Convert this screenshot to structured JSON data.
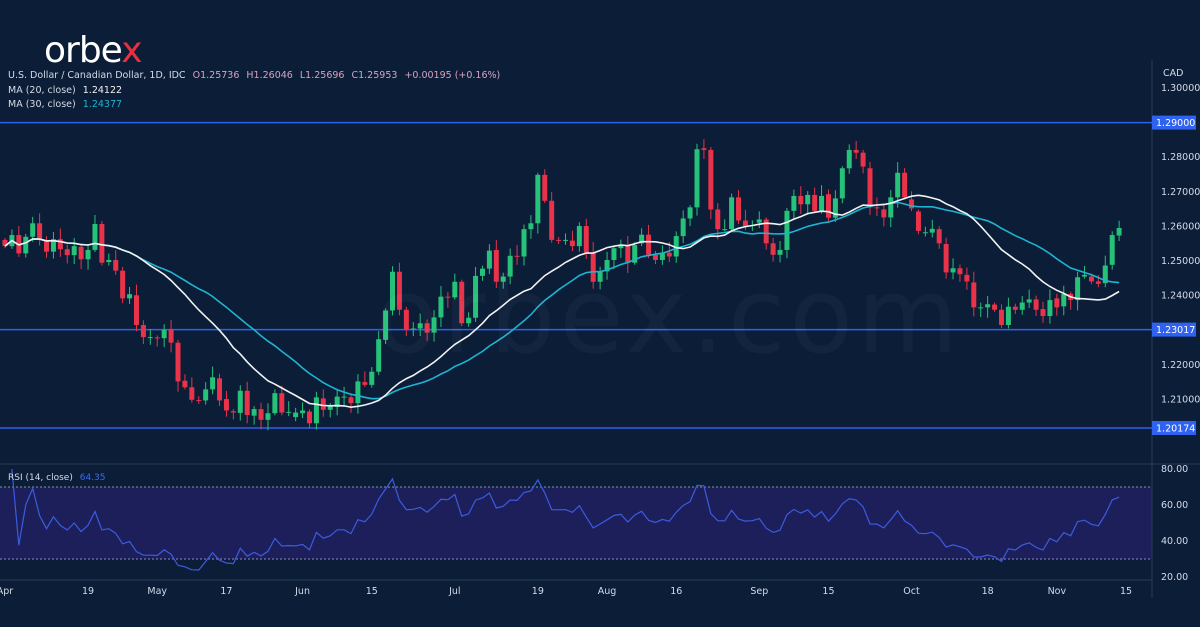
{
  "logo": {
    "text_main": "orbe",
    "text_accent": "x",
    "accent_color": "#e8303f"
  },
  "watermark": "orbex.com",
  "legend": {
    "title": "U.S. Dollar / Canadian Dollar, 1D, IDC",
    "open": "O1.25736",
    "high": "H1.26046",
    "low": "L1.25696",
    "close": "C1.25953",
    "change": "+0.00195 (+0.16%)",
    "ma20_label": "MA (20, close)",
    "ma20_value": "1.24122",
    "ma30_label": "MA (30, close)",
    "ma30_value": "1.24377",
    "rsi_label": "RSI (14, close)",
    "rsi_value": "64.35"
  },
  "colors": {
    "background": "#0b1d37",
    "up": "#26c27a",
    "down": "#e8334a",
    "ma20": "#f2f2f2",
    "ma30": "#1fb4cf",
    "rsi": "#3d5be0",
    "level": "#2f62f0",
    "rsi_band": "#1c1f5a"
  },
  "chart_data": {
    "type": "candlestick",
    "currency": "CAD",
    "price_ticks": [
      "1.30000",
      "1.28000",
      "1.27000",
      "1.26000",
      "1.25000",
      "1.24000",
      "1.22000",
      "1.21000"
    ],
    "ylim": [
      1.1935,
      1.3065
    ],
    "levels": [
      {
        "value": 1.29,
        "label": "1.29000"
      },
      {
        "value": 1.23017,
        "label": "1.23017"
      },
      {
        "value": 1.20174,
        "label": "1.20174"
      }
    ],
    "rsi_ticks": [
      "80.00",
      "60.00",
      "40.00",
      "20.00"
    ],
    "rsi_bands": [
      30,
      70
    ],
    "x_ticks": [
      [
        "04-01",
        "Apr"
      ],
      [
        "04-19",
        "19"
      ],
      [
        "05-03",
        "May"
      ],
      [
        "05-17",
        "17"
      ],
      [
        "06-01",
        "Jun"
      ],
      [
        "06-15",
        "15"
      ],
      [
        "07-01",
        "Jul"
      ],
      [
        "07-19",
        "19"
      ],
      [
        "08-02",
        "Aug"
      ],
      [
        "08-16",
        "16"
      ],
      [
        "09-01",
        "Sep"
      ],
      [
        "09-15",
        "15"
      ],
      [
        "10-01",
        "Oct"
      ],
      [
        "10-18",
        "18"
      ],
      [
        "11-01",
        "Nov"
      ],
      [
        "11-15",
        "15"
      ]
    ],
    "candles": [
      [
        "04-01",
        1.2561,
        1.2543
      ],
      [
        "04-02",
        1.2543,
        1.2575
      ],
      [
        "04-05",
        1.2575,
        1.2522
      ],
      [
        "04-06",
        1.2522,
        1.257
      ],
      [
        "04-07",
        1.257,
        1.2609
      ],
      [
        "04-08",
        1.2609,
        1.2561
      ],
      [
        "04-09",
        1.2561,
        1.2527
      ],
      [
        "04-12",
        1.2527,
        1.2563
      ],
      [
        "04-13",
        1.2563,
        1.2534
      ],
      [
        "04-14",
        1.2534,
        1.2517
      ],
      [
        "04-15",
        1.2517,
        1.2543
      ],
      [
        "04-16",
        1.2541,
        1.2505
      ],
      [
        "04-19",
        1.2505,
        1.2532
      ],
      [
        "04-20",
        1.2532,
        1.2607
      ],
      [
        "04-21",
        1.2607,
        1.2495
      ],
      [
        "04-22",
        1.2497,
        1.2503
      ],
      [
        "04-23",
        1.2503,
        1.2472
      ],
      [
        "04-26",
        1.2472,
        1.2392
      ],
      [
        "04-27",
        1.2392,
        1.2404
      ],
      [
        "04-28",
        1.2401,
        1.2315
      ],
      [
        "04-29",
        1.2315,
        1.228
      ],
      [
        "04-30",
        1.228,
        1.228
      ],
      [
        "05-03",
        1.2279,
        1.2277
      ],
      [
        "05-04",
        1.2277,
        1.2301
      ],
      [
        "05-05",
        1.2303,
        1.2264
      ],
      [
        "05-06",
        1.2264,
        1.2152
      ],
      [
        "05-07",
        1.2154,
        1.2135
      ],
      [
        "05-10",
        1.2135,
        1.2099
      ],
      [
        "05-11",
        1.2098,
        1.2097
      ],
      [
        "05-12",
        1.2097,
        1.2129
      ],
      [
        "05-13",
        1.2129,
        1.2164
      ],
      [
        "05-14",
        1.2161,
        1.2097
      ],
      [
        "05-17",
        1.2101,
        1.2068
      ],
      [
        "05-18",
        1.2066,
        1.2062
      ],
      [
        "05-19",
        1.2061,
        1.2125
      ],
      [
        "05-20",
        1.2125,
        1.2055
      ],
      [
        "05-21",
        1.2053,
        1.2072
      ],
      [
        "05-24",
        1.2072,
        1.2041
      ],
      [
        "05-25",
        1.2041,
        1.206
      ],
      [
        "05-26",
        1.206,
        1.2118
      ],
      [
        "05-27",
        1.2118,
        1.2062
      ],
      [
        "05-28",
        1.2062,
        1.2064
      ],
      [
        "05-31",
        1.2049,
        1.2062
      ],
      [
        "06-01",
        1.206,
        1.2068
      ],
      [
        "06-02",
        1.2065,
        1.2031
      ],
      [
        "06-03",
        1.2031,
        1.2106
      ],
      [
        "06-04",
        1.2103,
        1.207
      ],
      [
        "06-07",
        1.207,
        1.2081
      ],
      [
        "06-08",
        1.2078,
        1.2108
      ],
      [
        "06-09",
        1.2108,
        1.2108
      ],
      [
        "06-10",
        1.2106,
        1.2089
      ],
      [
        "06-11",
        1.2089,
        1.2152
      ],
      [
        "06-14",
        1.215,
        1.2142
      ],
      [
        "06-15",
        1.2142,
        1.218
      ],
      [
        "06-16",
        1.218,
        1.2274
      ],
      [
        "06-17",
        1.2272,
        1.2357
      ],
      [
        "06-18",
        1.2357,
        1.2469
      ],
      [
        "06-21",
        1.2469,
        1.2359
      ],
      [
        "06-22",
        1.2359,
        1.2301
      ],
      [
        "06-23",
        1.2303,
        1.2305
      ],
      [
        "06-24",
        1.2305,
        1.232
      ],
      [
        "06-25",
        1.232,
        1.2293
      ],
      [
        "06-28",
        1.2293,
        1.2337
      ],
      [
        "06-29",
        1.2337,
        1.2397
      ],
      [
        "06-30",
        1.2397,
        1.2395
      ],
      [
        "07-01",
        1.2395,
        1.244
      ],
      [
        "07-02",
        1.244,
        1.232
      ],
      [
        "07-05",
        1.232,
        1.2336
      ],
      [
        "07-06",
        1.2336,
        1.2457
      ],
      [
        "07-07",
        1.2457,
        1.2478
      ],
      [
        "07-08",
        1.2478,
        1.253
      ],
      [
        "07-09",
        1.2532,
        1.244
      ],
      [
        "07-12",
        1.244,
        1.2455
      ],
      [
        "07-13",
        1.2455,
        1.2515
      ],
      [
        "07-14",
        1.2515,
        1.2513
      ],
      [
        "07-15",
        1.2513,
        1.2592
      ],
      [
        "07-16",
        1.2592,
        1.2609
      ],
      [
        "07-19",
        1.2609,
        1.2749
      ],
      [
        "07-20",
        1.2749,
        1.2674
      ],
      [
        "07-21",
        1.2674,
        1.2561
      ],
      [
        "07-22",
        1.2561,
        1.2559
      ],
      [
        "07-23",
        1.2559,
        1.2561
      ],
      [
        "07-26",
        1.2559,
        1.2543
      ],
      [
        "07-27",
        1.2543,
        1.2601
      ],
      [
        "07-28",
        1.2601,
        1.2524
      ],
      [
        "07-29",
        1.2524,
        1.244
      ],
      [
        "07-30",
        1.244,
        1.247
      ],
      [
        "08-02",
        1.247,
        1.2503
      ],
      [
        "08-03",
        1.2503,
        1.2537
      ],
      [
        "08-04",
        1.2537,
        1.2546
      ],
      [
        "08-05",
        1.2546,
        1.2495
      ],
      [
        "08-06",
        1.2495,
        1.2546
      ],
      [
        "08-09",
        1.2551,
        1.2576
      ],
      [
        "08-10",
        1.2576,
        1.2518
      ],
      [
        "08-11",
        1.2518,
        1.2503
      ],
      [
        "08-12",
        1.2503,
        1.2524
      ],
      [
        "08-13",
        1.2524,
        1.2513
      ],
      [
        "08-16",
        1.2513,
        1.2572
      ],
      [
        "08-17",
        1.2572,
        1.2623
      ],
      [
        "08-18",
        1.2623,
        1.2655
      ],
      [
        "08-19",
        1.2655,
        1.2823
      ],
      [
        "08-20",
        1.2826,
        1.2821
      ],
      [
        "08-23",
        1.2821,
        1.2649
      ],
      [
        "08-24",
        1.2649,
        1.2592
      ],
      [
        "08-25",
        1.2592,
        1.2592
      ],
      [
        "08-26",
        1.2592,
        1.2684
      ],
      [
        "08-27",
        1.2684,
        1.2617
      ],
      [
        "08-30",
        1.2617,
        1.2601
      ],
      [
        "08-31",
        1.2601,
        1.2604
      ],
      [
        "09-01",
        1.2611,
        1.262
      ],
      [
        "09-02",
        1.262,
        1.2551
      ],
      [
        "09-03",
        1.2551,
        1.2518
      ],
      [
        "09-06",
        1.2518,
        1.2532
      ],
      [
        "09-07",
        1.2532,
        1.2645
      ],
      [
        "09-08",
        1.2645,
        1.2688
      ],
      [
        "09-09",
        1.2688,
        1.2664
      ],
      [
        "09-10",
        1.2664,
        1.2691
      ],
      [
        "09-13",
        1.2691,
        1.2645
      ],
      [
        "09-14",
        1.2645,
        1.2688
      ],
      [
        "09-15",
        1.2693,
        1.2625
      ],
      [
        "09-16",
        1.2625,
        1.2681
      ],
      [
        "09-17",
        1.2681,
        1.2768
      ],
      [
        "09-20",
        1.2768,
        1.2821
      ],
      [
        "09-21",
        1.2821,
        1.2813
      ],
      [
        "09-22",
        1.2813,
        1.2773
      ],
      [
        "09-23",
        1.2768,
        1.2655
      ],
      [
        "09-24",
        1.2655,
        1.2654
      ],
      [
        "09-27",
        1.2649,
        1.2626
      ],
      [
        "09-28",
        1.2626,
        1.2684
      ],
      [
        "09-29",
        1.2684,
        1.2755
      ],
      [
        "09-30",
        1.2755,
        1.2684
      ],
      [
        "10-01",
        1.2678,
        1.2652
      ],
      [
        "10-04",
        1.2643,
        1.2587
      ],
      [
        "10-05",
        1.2583,
        1.2583
      ],
      [
        "10-06",
        1.2582,
        1.2593
      ],
      [
        "10-07",
        1.2592,
        1.2551
      ],
      [
        "10-08",
        1.2549,
        1.2467
      ],
      [
        "10-11",
        1.2467,
        1.2479
      ],
      [
        "10-12",
        1.2479,
        1.2462
      ],
      [
        "10-13",
        1.246,
        1.2441
      ],
      [
        "10-14",
        1.2438,
        1.2366
      ],
      [
        "10-15",
        1.2366,
        1.2366
      ],
      [
        "10-18",
        1.2366,
        1.2375
      ],
      [
        "10-19",
        1.2374,
        1.2359
      ],
      [
        "10-20",
        1.2359,
        1.2315
      ],
      [
        "10-21",
        1.2315,
        1.2368
      ],
      [
        "10-22",
        1.2368,
        1.2359
      ],
      [
        "10-25",
        1.2359,
        1.238
      ],
      [
        "10-26",
        1.238,
        1.2389
      ],
      [
        "10-27",
        1.2389,
        1.2359
      ],
      [
        "10-28",
        1.2361,
        1.2341
      ],
      [
        "10-29",
        1.2341,
        1.2387
      ],
      [
        "11-01",
        1.2392,
        1.2366
      ],
      [
        "11-02",
        1.2369,
        1.2405
      ],
      [
        "11-03",
        1.2405,
        1.2387
      ],
      [
        "11-04",
        1.2387,
        1.2453
      ],
      [
        "11-05",
        1.2455,
        1.246
      ],
      [
        "11-08",
        1.2455,
        1.2441
      ],
      [
        "11-09",
        1.2441,
        1.2434
      ],
      [
        "11-10",
        1.2436,
        1.2487
      ],
      [
        "11-11",
        1.2489,
        1.2575
      ],
      [
        "11-12",
        1.25736,
        1.25953
      ]
    ]
  }
}
